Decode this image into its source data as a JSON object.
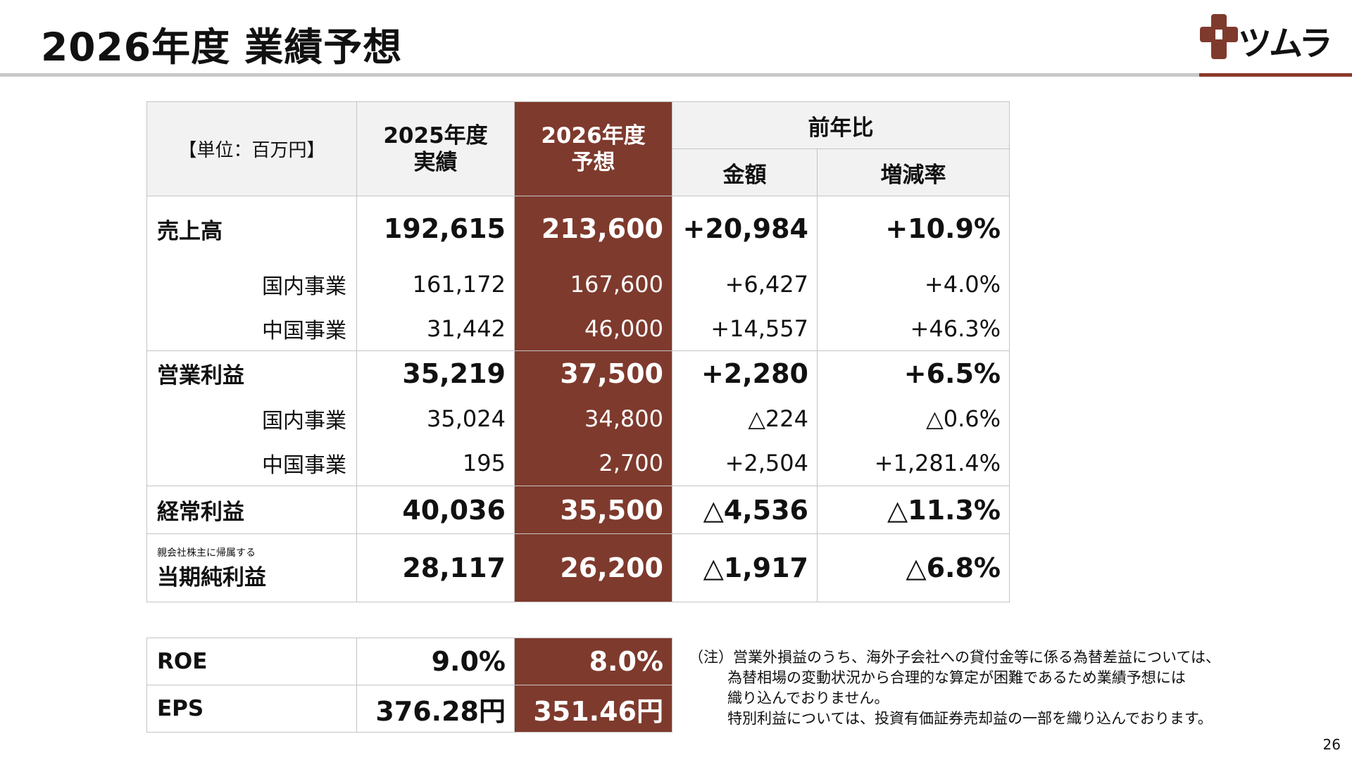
{
  "page": {
    "title": "2026年度 業績予想",
    "page_number": "26"
  },
  "logo": {
    "name": "ツムラ",
    "brand_color": "#7e3a2d"
  },
  "table": {
    "unit": "【単位：百万円】",
    "col_2025": "2025年度\n実績",
    "col_2026": "2026年度\n予想",
    "col_yoy": "前年比",
    "col_amount": "金額",
    "col_rate": "増減率",
    "rows": [
      {
        "label": "売上高",
        "v2025": "192,615",
        "v2026": "213,600",
        "diff": "+20,984",
        "rate": "+10.9%"
      },
      {
        "label": "国内事業",
        "v2025": "161,172",
        "v2026": "167,600",
        "diff": "+6,427",
        "rate": "+4.0%"
      },
      {
        "label": "中国事業",
        "v2025": "31,442",
        "v2026": "46,000",
        "diff": "+14,557",
        "rate": "+46.3%"
      },
      {
        "label": "営業利益",
        "v2025": "35,219",
        "v2026": "37,500",
        "diff": "+2,280",
        "rate": "+6.5%"
      },
      {
        "label": "国内事業",
        "v2025": "35,024",
        "v2026": "34,800",
        "diff": "△224",
        "rate": "△0.6%"
      },
      {
        "label": "中国事業",
        "v2025": "195",
        "v2026": "2,700",
        "diff": "+2,504",
        "rate": "+1,281.4%"
      },
      {
        "label": "経常利益",
        "v2025": "40,036",
        "v2026": "35,500",
        "diff": "△4,536",
        "rate": "△11.3%"
      },
      {
        "label_prefix": "親会社株主に帰属する",
        "label": "当期純利益",
        "v2025": "28,117",
        "v2026": "26,200",
        "diff": "△1,917",
        "rate": "△6.8%"
      }
    ]
  },
  "kpi": [
    {
      "label": "ROE",
      "v2025": "9.0%",
      "v2026": "8.0%"
    },
    {
      "label": "EPS",
      "v2025": "376.28円",
      "v2026": "351.46円"
    }
  ],
  "note": {
    "line1": "（注）営業外損益のうち、海外子会社への貸付金等に係る為替差益については、",
    "line2": "為替相場の変動状況から合理的な算定が困難であるため業績予想には",
    "line3": "織り込んでおりません。",
    "line4": "特別利益については、投資有価証券売却益の一部を織り込んでおります。"
  }
}
